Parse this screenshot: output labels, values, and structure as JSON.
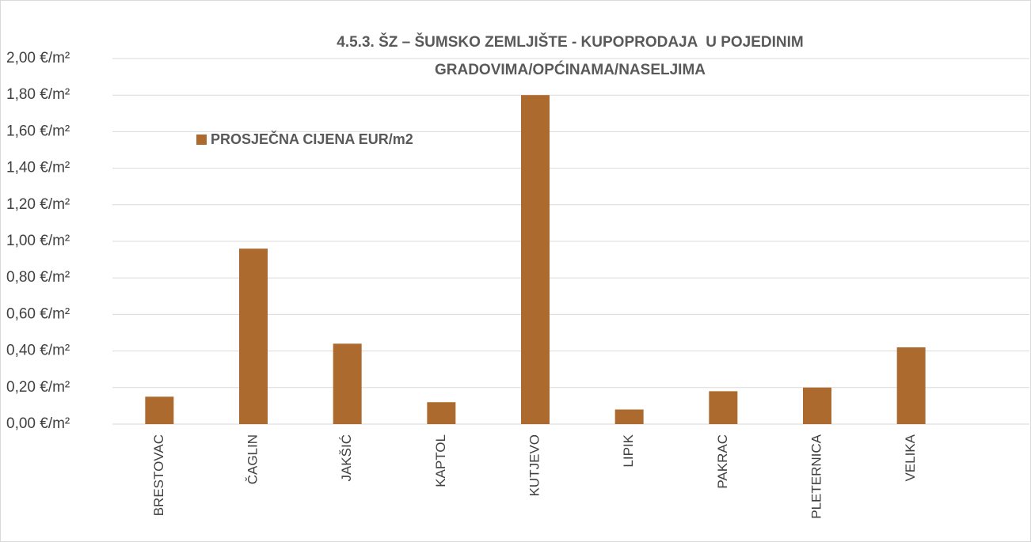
{
  "chart_data": {
    "type": "bar",
    "title": [
      "4.5.3. ŠZ – ŠUMSKO ZEMLJIŠTE - KUPOPRODAJA  U POJEDINIM",
      "GRADOVIMA/OPĆINAMA/NASELJIMA"
    ],
    "categories": [
      "BRESTOVAC",
      "ČAGLIN",
      "JAKŠIĆ",
      "KAPTOL",
      "KUTJEVO",
      "LIPIK",
      "PAKRAC",
      "PLETERNICA",
      "VELIKA"
    ],
    "series": [
      {
        "name": "PROSJEČNA CIJENA EUR/m2",
        "color": "#ad6a2e",
        "values": [
          0.15,
          0.96,
          0.44,
          0.12,
          1.8,
          0.08,
          0.18,
          0.2,
          0.42
        ]
      }
    ],
    "ylim": [
      0,
      2
    ],
    "yticks": [
      {
        "value": 0,
        "label": "0,00 €/m²"
      },
      {
        "value": 0.2,
        "label": "0,20 €/m²"
      },
      {
        "value": 0.4,
        "label": "0,40 €/m²"
      },
      {
        "value": 0.6,
        "label": "0,60 €/m²"
      },
      {
        "value": 0.8,
        "label": "0,80 €/m²"
      },
      {
        "value": 1.0,
        "label": "1,00 €/m²"
      },
      {
        "value": 1.2,
        "label": "1,20 €/m²"
      },
      {
        "value": 1.4,
        "label": "1,40 €/m²"
      },
      {
        "value": 1.6,
        "label": "1,60 €/m²"
      },
      {
        "value": 1.8,
        "label": "1,80 €/m²"
      },
      {
        "value": 2.0,
        "label": "2,00 €/m²"
      }
    ],
    "grid": true,
    "legend": "upper-left"
  }
}
